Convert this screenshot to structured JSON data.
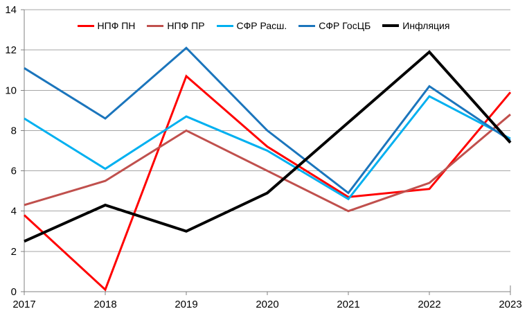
{
  "chart_data": {
    "type": "line",
    "title": "",
    "xlabel": "",
    "ylabel": "",
    "x": [
      "2017",
      "2018",
      "2019",
      "2020",
      "2021",
      "2022",
      "2023"
    ],
    "yticks": [
      0,
      2,
      4,
      6,
      8,
      10,
      12,
      14
    ],
    "ylim": [
      0,
      14
    ],
    "grid": true,
    "legend_position": "top",
    "series": [
      {
        "name": "НПФ ПН",
        "color": "#FF0000",
        "line_width": 3,
        "values": [
          3.8,
          0.1,
          10.7,
          7.2,
          4.7,
          5.1,
          9.9
        ]
      },
      {
        "name": "НПФ ПР",
        "color": "#C0504D",
        "line_width": 3,
        "values": [
          4.3,
          5.5,
          8.0,
          6.0,
          4.0,
          5.4,
          8.8
        ]
      },
      {
        "name": "СФР Расш.",
        "color": "#00B0F0",
        "line_width": 3,
        "values": [
          8.6,
          6.1,
          8.7,
          7.0,
          4.6,
          9.7,
          7.6
        ]
      },
      {
        "name": "СФР ГосЦБ",
        "color": "#1B75BC",
        "line_width": 3,
        "values": [
          11.1,
          8.6,
          12.1,
          8.0,
          4.9,
          10.2,
          7.5
        ]
      },
      {
        "name": "Инфляция",
        "color": "#000000",
        "line_width": 4,
        "values": [
          2.5,
          4.3,
          3.0,
          4.9,
          8.4,
          11.9,
          7.4
        ]
      }
    ],
    "colors": {
      "gridline": "#A6A6A6",
      "axis": "#808080",
      "background": "#FFFFFF",
      "text": "#000000"
    }
  }
}
